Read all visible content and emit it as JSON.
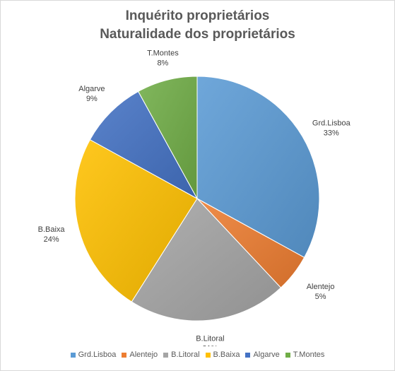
{
  "chart_data": {
    "type": "pie",
    "title": "Inquérito proprietários",
    "subtitle": "Naturalidade dos proprietários",
    "slices": [
      {
        "label": "Grd.Lisboa",
        "value": 33,
        "value_label": "33%",
        "color": "#5b9bd5"
      },
      {
        "label": "Alentejo",
        "value": 5,
        "value_label": "5%",
        "color": "#ed7d31"
      },
      {
        "label": "B.Litoral",
        "value": 21,
        "value_label": "21%",
        "color": "#a5a5a5"
      },
      {
        "label": "B.Baixa",
        "value": 24,
        "value_label": "24%",
        "color": "#ffc000"
      },
      {
        "label": "Algarve",
        "value": 9,
        "value_label": "9%",
        "color": "#4472c4"
      },
      {
        "label": "T.Montes",
        "value": 8,
        "value_label": "8%",
        "color": "#70ad47"
      }
    ],
    "legend_position": "bottom",
    "start_angle": "12 o'clock",
    "direction": "clockwise"
  }
}
